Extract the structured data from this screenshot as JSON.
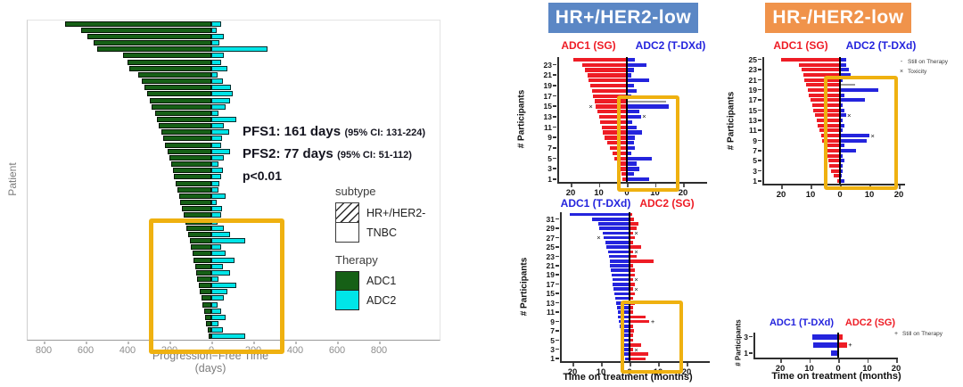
{
  "right_panel": {
    "hr_pos": {
      "label": "HR+/HER2-low",
      "bg": "#5b87c5"
    },
    "hr_neg": {
      "label": "HR-/HER2-low",
      "bg": "#f0934b"
    },
    "legend_b": [
      {
        "marker": "-",
        "label": "Still on Therapy"
      },
      {
        "marker": "×",
        "label": "Toxicity"
      }
    ],
    "legend_d": [
      {
        "marker": "+",
        "label": "Still on Therapy"
      }
    ]
  },
  "colors": {
    "adc1_green": "#166016",
    "adc2_cyan": "#00e5e8",
    "sg_red": "#ee1c25",
    "tdxd_blue": "#2424dd",
    "highlight_box": "#efb110",
    "gray_bar": "#9a9a9a"
  },
  "chart_data": [
    {
      "id": "pfs",
      "type": "bar",
      "subtype": "butterfly",
      "ylabel": "Patient",
      "xlabel_line1": "Progression−Free Time",
      "xlabel_line2": "(days)",
      "x_ticks": [
        800,
        600,
        400,
        200,
        0,
        200,
        400,
        600,
        800
      ],
      "xlim": [
        -880,
        1100
      ],
      "left_name": "ADC1",
      "right_name": "ADC2",
      "left_color": "#166016",
      "right_color": "#00e5e8",
      "annotation": {
        "line1_bold": "PFS1: 161 days",
        "line1_small": "(95% CI: 131-224)",
        "line2_bold": "PFS2: 77 days",
        "line2_small": "(95% CI: 51-112)",
        "line3": "p<0.01"
      },
      "legend": {
        "subtype_title": "subtype",
        "subtype_items": [
          {
            "label": "HR+/HER2-",
            "fill": "hatch"
          },
          {
            "label": "TNBC",
            "fill": "plain"
          }
        ],
        "therapy_title": "Therapy",
        "therapy_items": [
          {
            "label": "ADC1",
            "color": "#166016"
          },
          {
            "label": "ADC2",
            "color": "#00e5e8"
          }
        ]
      },
      "patients_columns": [
        "PFS1_days_left",
        "PFS2_days_right",
        "is_HR+/HER2-_hatched"
      ],
      "patients": [
        [
          700,
          45,
          1
        ],
        [
          620,
          25,
          1
        ],
        [
          590,
          60,
          0
        ],
        [
          560,
          40,
          0
        ],
        [
          545,
          270,
          0
        ],
        [
          420,
          60,
          1
        ],
        [
          400,
          45,
          0
        ],
        [
          390,
          75,
          1
        ],
        [
          350,
          30,
          1
        ],
        [
          330,
          55,
          0
        ],
        [
          320,
          95,
          0
        ],
        [
          305,
          100,
          0
        ],
        [
          295,
          90,
          1
        ],
        [
          285,
          70,
          0
        ],
        [
          270,
          35,
          1
        ],
        [
          260,
          120,
          1
        ],
        [
          250,
          60,
          0
        ],
        [
          240,
          85,
          1
        ],
        [
          230,
          50,
          0
        ],
        [
          220,
          45,
          1
        ],
        [
          210,
          90,
          1
        ],
        [
          200,
          60,
          0
        ],
        [
          192,
          35,
          1
        ],
        [
          185,
          55,
          0
        ],
        [
          178,
          45,
          1
        ],
        [
          170,
          40,
          0
        ],
        [
          162,
          35,
          1
        ],
        [
          155,
          70,
          1
        ],
        [
          148,
          25,
          0
        ],
        [
          140,
          50,
          1
        ],
        [
          132,
          45,
          0
        ],
        [
          125,
          30,
          1
        ],
        [
          118,
          60,
          1
        ],
        [
          110,
          90,
          0
        ],
        [
          103,
          160,
          0
        ],
        [
          96,
          45,
          1
        ],
        [
          90,
          70,
          0
        ],
        [
          84,
          110,
          1
        ],
        [
          78,
          55,
          0
        ],
        [
          72,
          90,
          1
        ],
        [
          66,
          35,
          0
        ],
        [
          60,
          120,
          1
        ],
        [
          54,
          75,
          0
        ],
        [
          48,
          60,
          1
        ],
        [
          42,
          30,
          0
        ],
        [
          36,
          45,
          1
        ],
        [
          30,
          70,
          0
        ],
        [
          24,
          35,
          0
        ],
        [
          18,
          55,
          1
        ],
        [
          12,
          160,
          1
        ]
      ]
    },
    {
      "id": "a",
      "type": "bar",
      "subtype": "butterfly",
      "group": "HR+/HER2-low",
      "header_left": "ADC1 (SG)",
      "header_right": "ADC2 (T-DXd)",
      "ylabel": "# Participants",
      "xlabel": "",
      "x_ticks": [
        20,
        10,
        0,
        10,
        20
      ],
      "xlim": [
        -24,
        28
      ],
      "left_color": "#ee1c25",
      "right_color": "#2424dd",
      "y_ticks": [
        23,
        21,
        19,
        17,
        15,
        13,
        11,
        9,
        7,
        5,
        3,
        1
      ],
      "rows_columns": [
        "left_months",
        "right_months",
        "left_marker",
        "right_marker",
        "right_is_gray_line"
      ],
      "rows": [
        [
          19,
          3,
          "",
          "",
          0
        ],
        [
          16,
          7,
          "",
          "",
          0
        ],
        [
          15,
          2.5,
          "",
          "",
          0
        ],
        [
          14,
          1.5,
          "",
          "",
          0
        ],
        [
          13.5,
          8,
          "",
          "",
          0
        ],
        [
          13,
          2.5,
          "",
          "",
          0
        ],
        [
          12.5,
          3.5,
          "",
          "",
          0
        ],
        [
          12,
          1.5,
          "",
          "",
          0
        ],
        [
          11.5,
          14,
          "",
          "",
          1
        ],
        [
          11,
          15,
          "×",
          "",
          0
        ],
        [
          10.5,
          4.5,
          "",
          "",
          0
        ],
        [
          10,
          5,
          "",
          "×",
          0
        ],
        [
          9.5,
          2,
          "",
          "",
          0
        ],
        [
          9,
          3.5,
          "",
          "",
          0
        ],
        [
          8.5,
          5.5,
          "",
          "",
          0
        ],
        [
          8,
          3,
          "",
          "",
          0
        ],
        [
          7,
          2.5,
          "",
          "",
          0
        ],
        [
          6,
          3,
          "",
          "",
          0
        ],
        [
          5,
          1.5,
          "",
          "",
          0
        ],
        [
          4.5,
          9,
          "",
          "",
          0
        ],
        [
          3.5,
          3.5,
          "",
          "",
          0
        ],
        [
          2.5,
          4.5,
          "",
          "",
          0
        ],
        [
          2,
          2.5,
          "",
          "",
          0
        ],
        [
          1.5,
          8,
          "",
          "",
          0
        ]
      ]
    },
    {
      "id": "b",
      "type": "bar",
      "subtype": "butterfly",
      "group": "HR-/HER2-low",
      "header_left": "ADC1 (SG)",
      "header_right": "ADC2 (T-DXd)",
      "ylabel": "# Participants",
      "xlabel": "",
      "x_ticks": [
        20,
        10,
        0,
        10,
        20
      ],
      "xlim": [
        -25,
        25
      ],
      "left_color": "#ee1c25",
      "right_color": "#2424dd",
      "y_ticks": [
        25,
        23,
        21,
        19,
        17,
        15,
        13,
        11,
        9,
        7,
        5,
        3,
        1
      ],
      "rows_columns": [
        "left_months",
        "right_months",
        "left_marker",
        "right_marker",
        "right_is_gray_line"
      ],
      "rows": [
        [
          20,
          2,
          "",
          "",
          0
        ],
        [
          14,
          2,
          "",
          "",
          0
        ],
        [
          13,
          3,
          "",
          "",
          0
        ],
        [
          12.5,
          3.5,
          "",
          "",
          0
        ],
        [
          12,
          1,
          "",
          "",
          0
        ],
        [
          11.5,
          5,
          "",
          "",
          1
        ],
        [
          11,
          13,
          "",
          "",
          0
        ],
        [
          10.5,
          1.5,
          "",
          "",
          0
        ],
        [
          10,
          8.5,
          "",
          "",
          0
        ],
        [
          9.5,
          1,
          "",
          "",
          0
        ],
        [
          9,
          1.5,
          "",
          "",
          0
        ],
        [
          8.5,
          2,
          "",
          "×",
          0
        ],
        [
          8,
          1,
          "",
          "",
          0
        ],
        [
          7.5,
          1.5,
          "",
          "",
          0
        ],
        [
          7,
          1,
          "",
          "",
          0
        ],
        [
          6.5,
          10,
          "",
          "×",
          0
        ],
        [
          6,
          9,
          "",
          "",
          0
        ],
        [
          5.5,
          1.5,
          "",
          "",
          0
        ],
        [
          5,
          5.5,
          "",
          "",
          0
        ],
        [
          4.5,
          1,
          "",
          "",
          0
        ],
        [
          4,
          1.5,
          "",
          "",
          0
        ],
        [
          3.5,
          1,
          "",
          "",
          0
        ],
        [
          3,
          0.8,
          "×",
          "",
          0
        ],
        [
          2,
          0.5,
          "",
          "",
          0
        ],
        [
          1,
          1.5,
          "",
          "",
          0
        ]
      ]
    },
    {
      "id": "c",
      "type": "bar",
      "subtype": "butterfly",
      "group": "HR+/HER2-low",
      "header_left": "ADC1 (T-DXd)",
      "header_right": "ADC2 (SG)",
      "ylabel": "# Participants",
      "xlabel": "Time on treatment (months)",
      "x_ticks": [
        20,
        10,
        0,
        10,
        20
      ],
      "xlim": [
        -24,
        28
      ],
      "left_color": "#2424dd",
      "right_color": "#ee1c25",
      "y_ticks": [
        31,
        29,
        27,
        25,
        23,
        21,
        19,
        17,
        15,
        13,
        11,
        9,
        7,
        5,
        3,
        1
      ],
      "rows_columns": [
        "left_months",
        "right_months",
        "left_marker",
        "right_marker",
        "right_is_gray_line"
      ],
      "rows": [
        [
          21,
          0.8,
          "",
          "",
          0
        ],
        [
          13,
          1.5,
          "",
          "",
          0
        ],
        [
          11,
          3,
          "",
          "",
          0
        ],
        [
          10.5,
          2.5,
          "",
          "",
          0
        ],
        [
          9.5,
          1.2,
          "",
          "×",
          0
        ],
        [
          9,
          2,
          "×",
          "",
          0
        ],
        [
          8.5,
          1.2,
          "",
          "",
          0
        ],
        [
          8,
          4,
          "",
          "",
          0
        ],
        [
          7.5,
          1.2,
          "",
          "×",
          0
        ],
        [
          7.2,
          2.5,
          "",
          "",
          0
        ],
        [
          7,
          8.5,
          "",
          "",
          0
        ],
        [
          6.8,
          1.2,
          "",
          "",
          0
        ],
        [
          6.5,
          2,
          "",
          "",
          0
        ],
        [
          6.2,
          1.8,
          "",
          "",
          0
        ],
        [
          6,
          1.2,
          "",
          "×",
          0
        ],
        [
          5.8,
          2,
          "",
          "",
          0
        ],
        [
          5.5,
          1.2,
          "",
          "×",
          0
        ],
        [
          5.2,
          1.8,
          "",
          "",
          0
        ],
        [
          5,
          1.2,
          "",
          "",
          0
        ],
        [
          4.8,
          2,
          "",
          "",
          0
        ],
        [
          4.5,
          1.2,
          "",
          "",
          0
        ],
        [
          4.2,
          1.2,
          "",
          "",
          0
        ],
        [
          4,
          5.5,
          "",
          "",
          0
        ],
        [
          3.8,
          7,
          "",
          "+",
          0
        ],
        [
          3.5,
          1.2,
          "",
          "",
          0
        ],
        [
          3.2,
          1.5,
          "",
          "",
          0
        ],
        [
          3,
          1.2,
          "",
          "",
          0
        ],
        [
          2.8,
          1.2,
          "",
          "",
          0
        ],
        [
          2.5,
          4,
          "",
          "",
          0
        ],
        [
          2.2,
          1.2,
          "",
          "×",
          0
        ],
        [
          2,
          6.5,
          "",
          "",
          0
        ],
        [
          1.5,
          5.5,
          "",
          "",
          0
        ]
      ]
    },
    {
      "id": "d",
      "type": "bar",
      "subtype": "butterfly",
      "group": "HR-/HER2-low",
      "header_left": "ADC1 (T-DXd)",
      "header_right": "ADC2 (SG)",
      "ylabel": "# Participants",
      "xlabel": "Time on treatment (months)",
      "x_ticks": [
        20,
        10,
        0,
        10,
        20
      ],
      "xlim": [
        -28,
        22
      ],
      "left_color": "#2424dd",
      "right_color": "#ee1c25",
      "y_ticks": [
        3,
        1
      ],
      "rows_columns": [
        "left_months",
        "right_months",
        "left_marker",
        "right_marker",
        "right_is_gray_line"
      ],
      "rows": [
        [
          9,
          1.5,
          "",
          "",
          0
        ],
        [
          8.5,
          3,
          "",
          "+",
          0
        ],
        [
          2.5,
          0,
          "",
          "",
          0
        ]
      ]
    }
  ]
}
